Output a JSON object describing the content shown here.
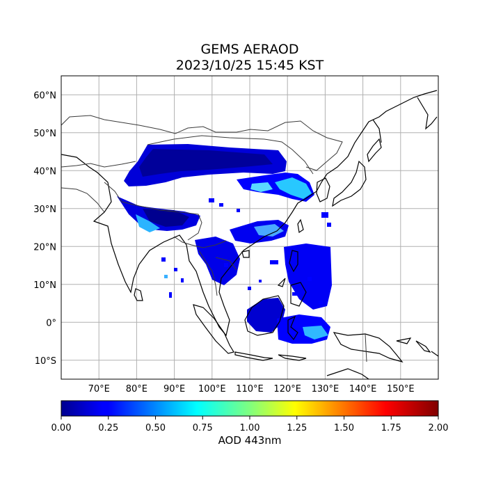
{
  "title": {
    "line1": "GEMS AERAOD",
    "line2": "2023/10/25 15:45 KST"
  },
  "map": {
    "lon_range": [
      60,
      160
    ],
    "lat_range": [
      -15,
      65
    ],
    "grid": true,
    "lat_ticks": [
      {
        "value": 60,
        "label": "60°N"
      },
      {
        "value": 50,
        "label": "50°N"
      },
      {
        "value": 40,
        "label": "40°N"
      },
      {
        "value": 30,
        "label": "30°N"
      },
      {
        "value": 20,
        "label": "20°N"
      },
      {
        "value": 10,
        "label": "10°N"
      },
      {
        "value": 0,
        "label": "0°"
      },
      {
        "value": -10,
        "label": "10°S"
      }
    ],
    "lon_ticks": [
      {
        "value": 70,
        "label": "70°E"
      },
      {
        "value": 80,
        "label": "80°E"
      },
      {
        "value": 90,
        "label": "90°E"
      },
      {
        "value": 100,
        "label": "100°E"
      },
      {
        "value": 110,
        "label": "110°E"
      },
      {
        "value": 120,
        "label": "120°E"
      },
      {
        "value": 130,
        "label": "130°E"
      },
      {
        "value": 140,
        "label": "140°E"
      },
      {
        "value": 150,
        "label": "150°E"
      }
    ]
  },
  "colorbar": {
    "label": "AOD 443nm",
    "min": 0.0,
    "max": 2.0,
    "colormap": "jet",
    "ticks": [
      "0.00",
      "0.25",
      "0.50",
      "0.75",
      "1.00",
      "1.25",
      "1.50",
      "1.75",
      "2.00"
    ]
  },
  "colors": {
    "low": "#00008f",
    "mid": "#00ffff",
    "high": "#800000",
    "grid": "#b0b0b0",
    "coast": "#000000"
  }
}
